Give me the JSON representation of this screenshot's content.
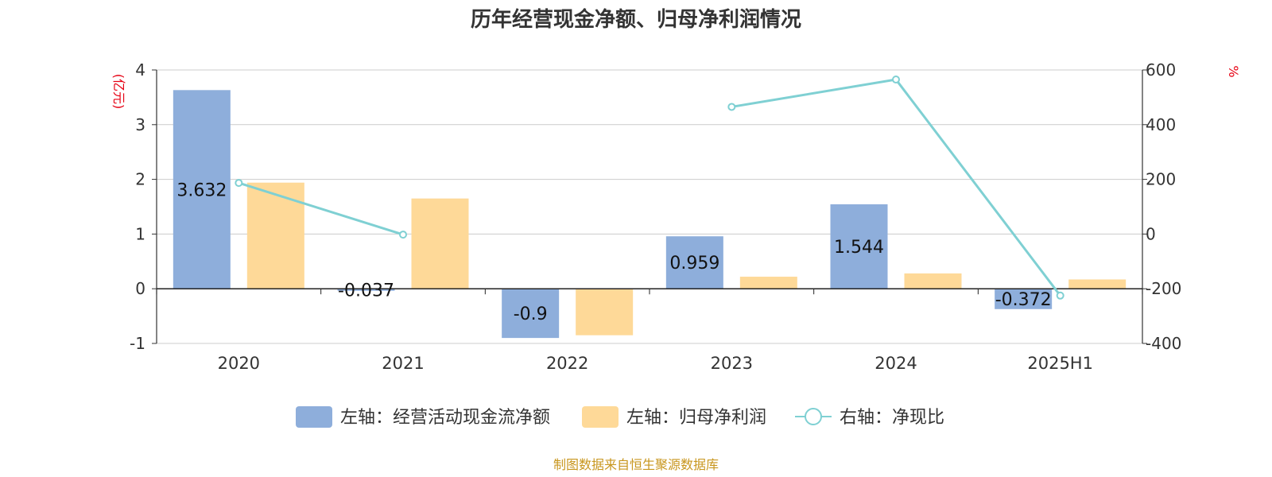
{
  "chart_data": {
    "type": "bar",
    "title": "历年经营现金净额、归母净利润情况",
    "categories": [
      "2020",
      "2021",
      "2022",
      "2023",
      "2024",
      "2025H1"
    ],
    "left_axis": {
      "unit_label": "(亿元)",
      "ylim": [
        -1,
        4
      ],
      "ticks": [
        -1,
        0,
        1,
        2,
        3,
        4
      ]
    },
    "right_axis": {
      "unit_label": "%",
      "ylim": [
        -400,
        600
      ],
      "ticks": [
        -400,
        -200,
        0,
        200,
        400,
        600
      ]
    },
    "grid": true,
    "legend_position": "bottom",
    "series": [
      {
        "name": "左轴：经营活动现金流净额",
        "kind": "bar",
        "axis": "left",
        "color": "#8eaedb",
        "values": [
          3.632,
          -0.037,
          -0.9,
          0.959,
          1.544,
          -0.372
        ],
        "data_labels": [
          "3.632",
          "-0.037",
          "-0.9",
          "0.959",
          "1.544",
          "-0.372"
        ]
      },
      {
        "name": "左轴：归母净利润",
        "kind": "bar",
        "axis": "left",
        "color": "#fed998",
        "values": [
          1.94,
          1.65,
          -0.85,
          0.22,
          0.28,
          0.17
        ]
      },
      {
        "name": "右轴：净现比",
        "kind": "line",
        "axis": "right",
        "color": "#7fd0d3",
        "values": [
          187,
          -2,
          null,
          465,
          565,
          -225
        ]
      }
    ],
    "source": "制图数据来自恒生聚源数据库"
  }
}
